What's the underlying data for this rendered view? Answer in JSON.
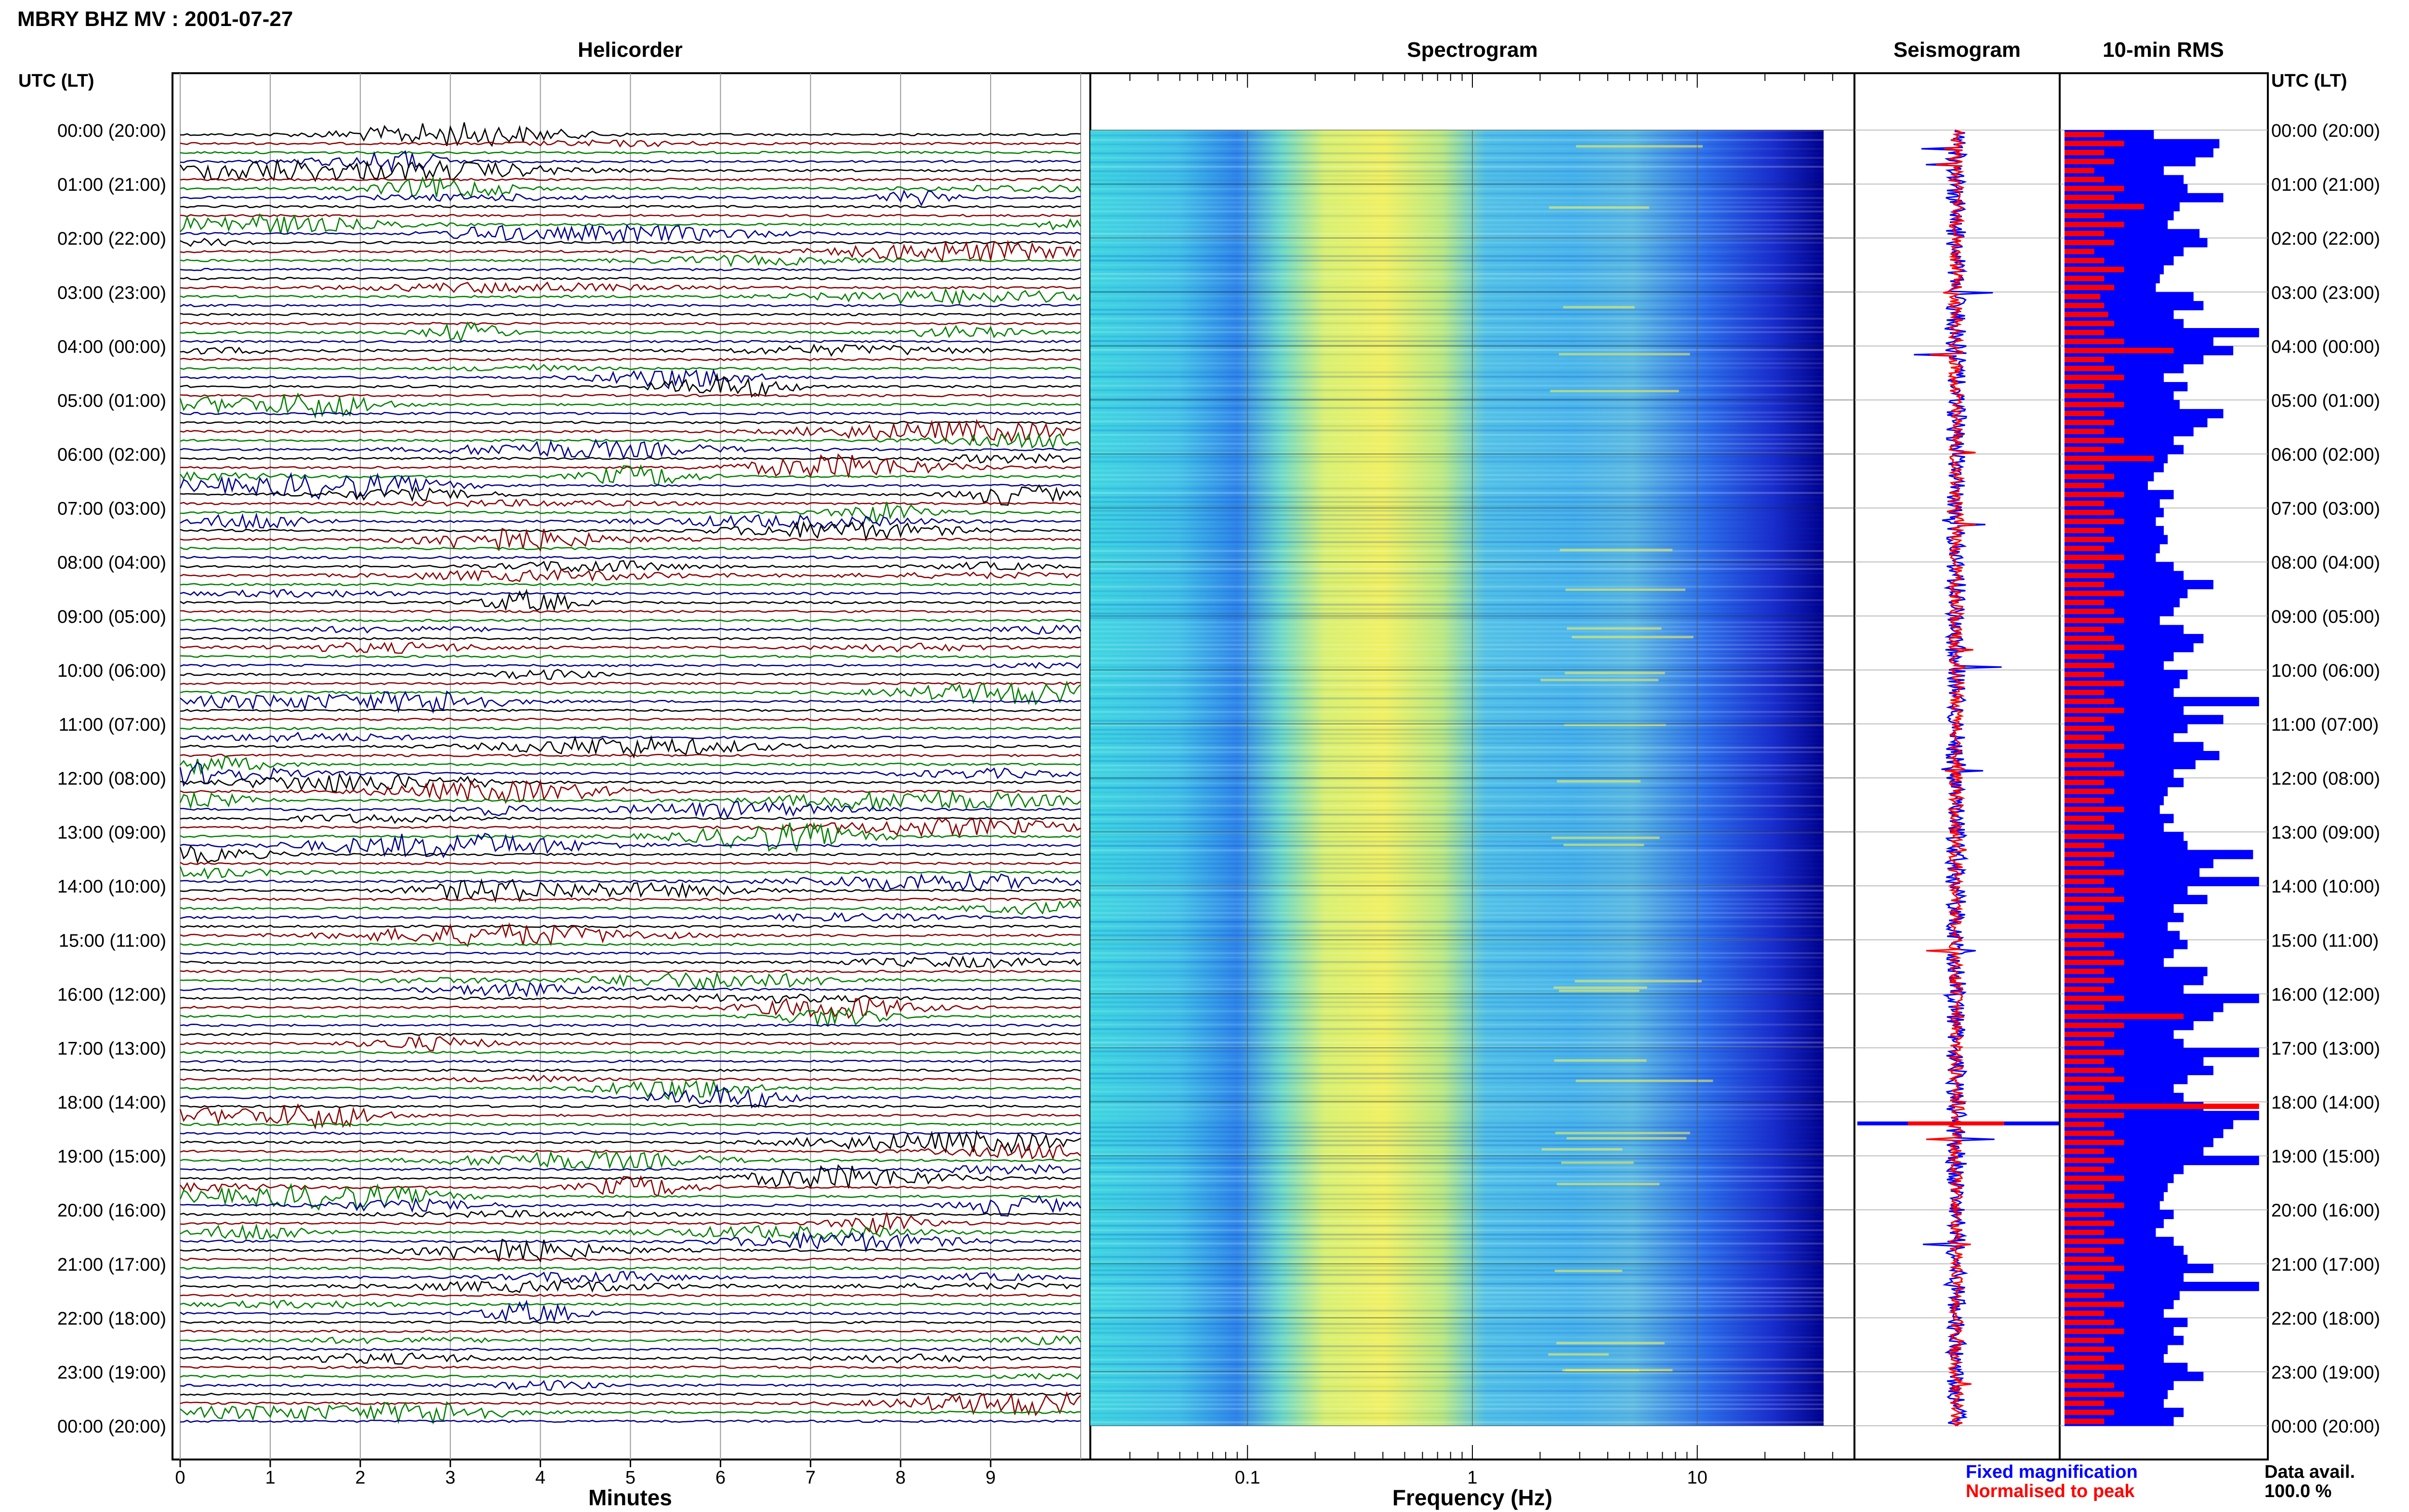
{
  "header": {
    "station_title": "MBRY BHZ MV : 2001-07-27",
    "utc_lt_label_left": "UTC (LT)",
    "utc_lt_label_right": "UTC (LT)"
  },
  "panels": {
    "helicorder": {
      "title": "Helicorder",
      "xlabel": "Minutes"
    },
    "spectrogram": {
      "title": "Spectrogram",
      "xlabel": "Frequency (Hz)"
    },
    "seismogram": {
      "title": "Seismogram"
    },
    "rms": {
      "title": "10-min RMS"
    }
  },
  "legend": {
    "fixed": "Fixed magnification",
    "normalised": "Normalised to peak",
    "fixed_color": "#0000ff",
    "normalised_color": "#ff0000"
  },
  "data_availability": {
    "label": "Data avail.",
    "value": "100.0 %"
  },
  "colors": {
    "trace_black": "#000000",
    "trace_red": "#8b0000",
    "trace_green": "#008000",
    "trace_blue": "#00008b",
    "spectrogram_low": "#00008b",
    "spectrogram_mid": "#ffff40",
    "spectrogram_high": "#ff0000"
  },
  "chart_data": [
    {
      "type": "line",
      "name": "helicorder",
      "title": "Helicorder",
      "xlabel": "Minutes",
      "x_ticks": [
        "0",
        "1",
        "2",
        "3",
        "4",
        "5",
        "6",
        "7",
        "8",
        "9"
      ],
      "xlim": [
        0,
        10
      ],
      "hour_labels": [
        "00:00 (20:00)",
        "01:00 (21:00)",
        "02:00 (22:00)",
        "03:00 (23:00)",
        "04:00 (00:00)",
        "05:00 (01:00)",
        "06:00 (02:00)",
        "07:00 (03:00)",
        "08:00 (04:00)",
        "09:00 (05:00)",
        "10:00 (06:00)",
        "11:00 (07:00)",
        "12:00 (08:00)",
        "13:00 (09:00)",
        "14:00 (10:00)",
        "15:00 (11:00)",
        "16:00 (12:00)",
        "17:00 (13:00)",
        "18:00 (14:00)",
        "19:00 (15:00)",
        "20:00 (16:00)",
        "21:00 (17:00)",
        "22:00 (18:00)",
        "23:00 (19:00)",
        "00:00 (20:00)"
      ],
      "lines_per_hour": 6
    },
    {
      "type": "heatmap",
      "name": "spectrogram",
      "title": "Spectrogram",
      "xlabel": "Frequency (Hz)",
      "x_scale": "log",
      "xlim": [
        0.02,
        50
      ],
      "x_ticks": [
        "0.1",
        "1",
        "10"
      ],
      "peak_band_hz": [
        0.2,
        0.8
      ],
      "secondary_band_hz": [
        2,
        5
      ]
    },
    {
      "type": "bar",
      "name": "10-min RMS",
      "title": "10-min RMS",
      "fixed_magnification": [
        0.45,
        0.78,
        0.75,
        0.66,
        0.5,
        0.6,
        0.62,
        0.8,
        0.58,
        0.55,
        0.52,
        0.68,
        0.72,
        0.6,
        0.55,
        0.5,
        0.48,
        0.46,
        0.65,
        0.7,
        0.55,
        0.6,
        0.98,
        0.75,
        0.85,
        0.7,
        0.6,
        0.5,
        0.62,
        0.55,
        0.58,
        0.8,
        0.72,
        0.65,
        0.55,
        0.6,
        0.52,
        0.5,
        0.45,
        0.42,
        0.55,
        0.48,
        0.5,
        0.46,
        0.5,
        0.52,
        0.48,
        0.46,
        0.55,
        0.6,
        0.75,
        0.62,
        0.58,
        0.55,
        0.48,
        0.6,
        0.7,
        0.65,
        0.55,
        0.5,
        0.62,
        0.58,
        0.55,
        0.98,
        0.6,
        0.8,
        0.62,
        0.55,
        0.7,
        0.78,
        0.66,
        0.55,
        0.6,
        0.52,
        0.5,
        0.48,
        0.55,
        0.5,
        0.6,
        0.62,
        0.95,
        0.75,
        0.68,
        0.98,
        0.62,
        0.72,
        0.55,
        0.6,
        0.52,
        0.58,
        0.62,
        0.55,
        0.5,
        0.72,
        0.7,
        0.6,
        0.98,
        0.8,
        0.75,
        0.65,
        0.55,
        0.6,
        0.98,
        0.7,
        0.75,
        0.62,
        0.55,
        0.6,
        0.7,
        0.98,
        0.85,
        0.8,
        0.75,
        0.7,
        0.98,
        0.6,
        0.55,
        0.52,
        0.5,
        0.48,
        0.55,
        0.5,
        0.46,
        0.55,
        0.6,
        0.62,
        0.75,
        0.6,
        0.98,
        0.58,
        0.55,
        0.5,
        0.62,
        0.55,
        0.6,
        0.52,
        0.5,
        0.62,
        0.7,
        0.55,
        0.52,
        0.5,
        0.6,
        0.55
      ],
      "normalised_to_peak": [
        0.2,
        0.3,
        0.2,
        0.25,
        0.15,
        0.2,
        0.3,
        0.25,
        0.4,
        0.2,
        0.3,
        0.2,
        0.25,
        0.15,
        0.2,
        0.3,
        0.2,
        0.25,
        0.18,
        0.2,
        0.22,
        0.25,
        0.2,
        0.3,
        0.55,
        0.2,
        0.25,
        0.3,
        0.2,
        0.25,
        0.3,
        0.2,
        0.25,
        0.2,
        0.3,
        0.2,
        0.45,
        0.2,
        0.25,
        0.2,
        0.3,
        0.2,
        0.25,
        0.3,
        0.2,
        0.25,
        0.2,
        0.3,
        0.2,
        0.25,
        0.2,
        0.3,
        0.2,
        0.25,
        0.3,
        0.2,
        0.25,
        0.3,
        0.2,
        0.25,
        0.2,
        0.3,
        0.2,
        0.25,
        0.3,
        0.2,
        0.25,
        0.2,
        0.3,
        0.2,
        0.25,
        0.3,
        0.2,
        0.25,
        0.2,
        0.3,
        0.2,
        0.25,
        0.3,
        0.2,
        0.25,
        0.2,
        0.3,
        0.2,
        0.25,
        0.3,
        0.2,
        0.25,
        0.2,
        0.3,
        0.2,
        0.25,
        0.3,
        0.2,
        0.25,
        0.2,
        0.3,
        0.2,
        0.6,
        0.3,
        0.25,
        0.2,
        0.3,
        0.2,
        0.25,
        0.3,
        0.2,
        0.25,
        0.98,
        0.3,
        0.2,
        0.25,
        0.3,
        0.2,
        0.25,
        0.2,
        0.3,
        0.2,
        0.25,
        0.3,
        0.2,
        0.25,
        0.2,
        0.3,
        0.2,
        0.25,
        0.3,
        0.2,
        0.25,
        0.2,
        0.3,
        0.2,
        0.25,
        0.3,
        0.2,
        0.25,
        0.2,
        0.3,
        0.2,
        0.25,
        0.3,
        0.2,
        0.25,
        0.2
      ],
      "n_bins": 144
    },
    {
      "type": "line",
      "name": "seismogram",
      "title": "Seismogram",
      "series": [
        {
          "name": "Fixed magnification",
          "color": "#0000ff"
        },
        {
          "name": "Normalised to peak",
          "color": "#ff0000"
        }
      ]
    }
  ]
}
